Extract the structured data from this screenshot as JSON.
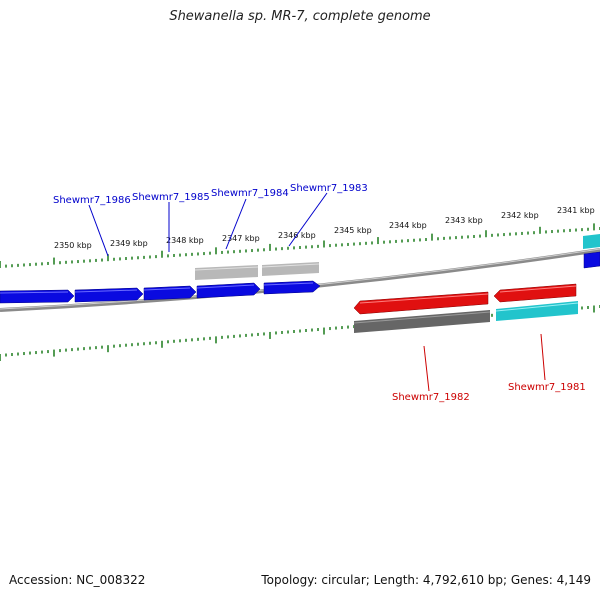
{
  "title": "Shewanella sp. MR-7, complete genome",
  "footer": {
    "accession": "Accession: NC_008322",
    "summary": "Topology: circular; Length: 4,792,610 bp; Genes: 4,149"
  },
  "ticks": [
    {
      "label": "2350 kbp"
    },
    {
      "label": "2349 kbp"
    },
    {
      "label": "2348 kbp"
    },
    {
      "label": "2347 kbp"
    },
    {
      "label": "2346 kbp"
    },
    {
      "label": "2345 kbp"
    },
    {
      "label": "2344 kbp"
    },
    {
      "label": "2343 kbp"
    },
    {
      "label": "2342 kbp"
    },
    {
      "label": "2341 kbp"
    }
  ],
  "gene_labels": [
    {
      "name": "Shewmr7_1986",
      "strand": "forward"
    },
    {
      "name": "Shewmr7_1985",
      "strand": "forward"
    },
    {
      "name": "Shewmr7_1984",
      "strand": "forward"
    },
    {
      "name": "Shewmr7_1983",
      "strand": "forward"
    },
    {
      "name": "Shewmr7_1982",
      "strand": "reverse"
    },
    {
      "name": "Shewmr7_1981",
      "strand": "reverse"
    }
  ],
  "colors": {
    "forward": "#0000cc",
    "reverse": "#cc0000",
    "forward_cds": "#0a0ae0",
    "reverse_cds": "#e01010",
    "cyan_cds": "#22c4cc",
    "gray_light": "#b8b8b8",
    "gray_dark": "#666666",
    "backbone": "#8a8a8a",
    "tick": "#1a7a1a"
  }
}
